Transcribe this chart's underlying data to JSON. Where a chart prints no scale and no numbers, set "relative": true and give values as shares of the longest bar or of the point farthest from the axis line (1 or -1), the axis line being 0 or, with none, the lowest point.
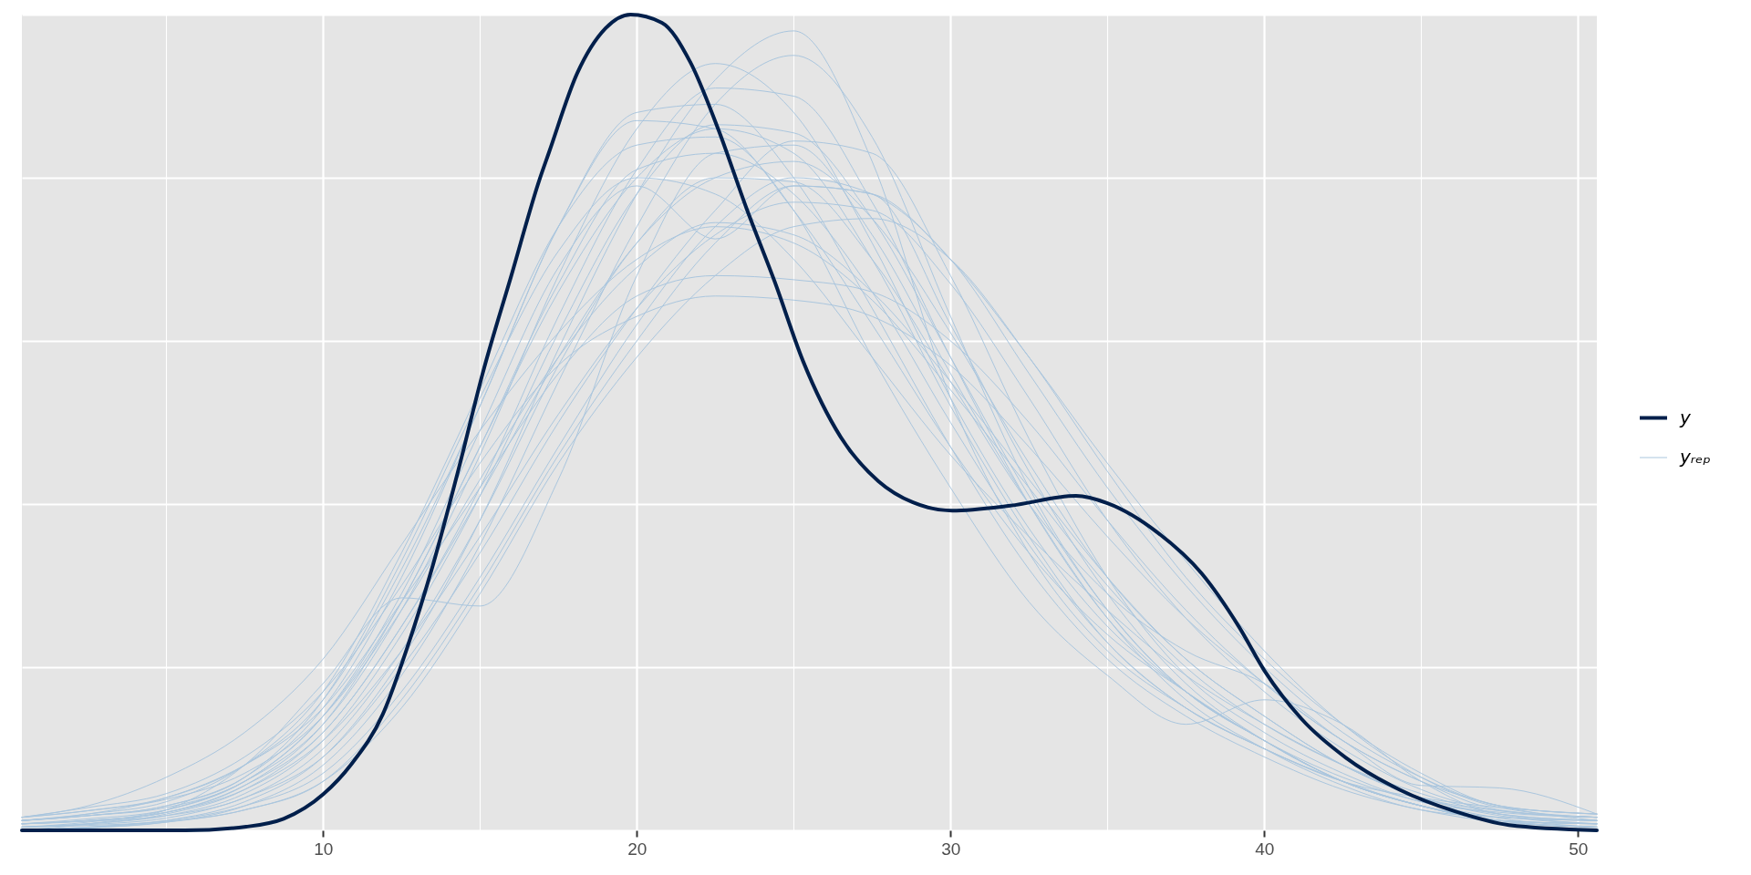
{
  "chart_data": {
    "type": "line",
    "relative": true,
    "grid": true,
    "legend": "right",
    "tick_labels": "x",
    "xlim": [
      0.4,
      50.6
    ],
    "xticks": [
      10,
      20,
      30,
      40,
      50
    ],
    "x": [
      0.4,
      2.5,
      5,
      7.5,
      10,
      12.5,
      15,
      17.5,
      20,
      22.5,
      25,
      27.5,
      30,
      32.5,
      35,
      37.5,
      40,
      42.5,
      45,
      47.5,
      50.6
    ],
    "series": [
      {
        "name": "y",
        "color": "#011f4b",
        "x": [
          0.4,
          5.6,
          7.55,
          8.74,
          10.0,
          10.9,
          11.9,
          12.7,
          13.5,
          14.3,
          15.1,
          16.0,
          16.9,
          17.2,
          18.1,
          19.0,
          19.8,
          20.8,
          21.7,
          22.6,
          23.5,
          24.4,
          25.3,
          26.5,
          27.7,
          28.8,
          30.05,
          31.9,
          34.0,
          35.0,
          36.6,
          38.0,
          39.2,
          40.0,
          41.2,
          42.6,
          44.3,
          46.1,
          47.8,
          50.6
        ],
        "values": [
          0,
          0,
          0.0045,
          0.014,
          0.044,
          0.081,
          0.142,
          0.226,
          0.325,
          0.44,
          0.562,
          0.68,
          0.798,
          0.831,
          0.928,
          0.983,
          1.0,
          0.99,
          0.942,
          0.859,
          0.762,
          0.672,
          0.575,
          0.482,
          0.428,
          0.402,
          0.392,
          0.398,
          0.41,
          0.401,
          0.365,
          0.315,
          0.249,
          0.196,
          0.136,
          0.089,
          0.05,
          0.023,
          0.0065,
          0
        ]
      },
      {
        "name": "yᵣₑₚ",
        "color": "#aac6de",
        "values": [
          0.0,
          0.004,
          0.012,
          0.035,
          0.09,
          0.21,
          0.38,
          0.59,
          0.78,
          0.92,
          0.98,
          0.82,
          0.53,
          0.34,
          0.22,
          0.15,
          0.1,
          0.06,
          0.03,
          0.012,
          0.004
        ]
      },
      {
        "color": "#aac6de",
        "values": [
          0.0,
          0.003,
          0.01,
          0.03,
          0.08,
          0.19,
          0.35,
          0.55,
          0.74,
          0.89,
          0.95,
          0.85,
          0.63,
          0.42,
          0.27,
          0.17,
          0.11,
          0.06,
          0.03,
          0.012,
          0.008
        ]
      },
      {
        "color": "#aac6de",
        "values": [
          0.004,
          0.01,
          0.025,
          0.06,
          0.13,
          0.27,
          0.46,
          0.68,
          0.86,
          0.94,
          0.88,
          0.72,
          0.53,
          0.37,
          0.25,
          0.17,
          0.11,
          0.06,
          0.03,
          0.012,
          0.004
        ]
      },
      {
        "color": "#aac6de",
        "values": [
          0.004,
          0.008,
          0.02,
          0.05,
          0.12,
          0.25,
          0.42,
          0.63,
          0.81,
          0.91,
          0.9,
          0.77,
          0.58,
          0.4,
          0.26,
          0.17,
          0.11,
          0.06,
          0.03,
          0.012,
          0.008
        ]
      },
      {
        "color": "#aac6de",
        "values": [
          0.004,
          0.007,
          0.015,
          0.04,
          0.09,
          0.2,
          0.34,
          0.5,
          0.64,
          0.76,
          0.845,
          0.83,
          0.68,
          0.48,
          0.31,
          0.19,
          0.12,
          0.07,
          0.035,
          0.022,
          0.016
        ]
      },
      {
        "color": "#aac6de",
        "values": [
          0.016,
          0.024,
          0.04,
          0.08,
          0.16,
          0.32,
          0.52,
          0.74,
          0.87,
          0.86,
          0.76,
          0.62,
          0.47,
          0.34,
          0.24,
          0.17,
          0.11,
          0.065,
          0.035,
          0.015,
          0.004
        ]
      },
      {
        "color": "#aac6de",
        "values": [
          0.016,
          0.028,
          0.045,
          0.09,
          0.17,
          0.3,
          0.45,
          0.57,
          0.63,
          0.655,
          0.65,
          0.63,
          0.57,
          0.47,
          0.36,
          0.26,
          0.18,
          0.11,
          0.06,
          0.03,
          0.012
        ]
      },
      {
        "color": "#aac6de",
        "values": [
          0.008,
          0.014,
          0.025,
          0.06,
          0.14,
          0.29,
          0.49,
          0.69,
          0.79,
          0.725,
          0.79,
          0.78,
          0.62,
          0.44,
          0.29,
          0.18,
          0.11,
          0.06,
          0.03,
          0.012,
          0.008
        ]
      },
      {
        "color": "#aac6de",
        "values": [
          0.0,
          0.008,
          0.025,
          0.08,
          0.18,
          0.285,
          0.275,
          0.43,
          0.68,
          0.83,
          0.84,
          0.73,
          0.56,
          0.4,
          0.26,
          0.16,
          0.1,
          0.055,
          0.025,
          0.016,
          0.012
        ]
      },
      {
        "color": "#aac6de",
        "values": [
          0.016,
          0.03,
          0.065,
          0.12,
          0.21,
          0.35,
          0.49,
          0.61,
          0.7,
          0.74,
          0.72,
          0.65,
          0.54,
          0.42,
          0.3,
          0.2,
          0.13,
          0.08,
          0.045,
          0.02,
          0.008
        ]
      },
      {
        "color": "#aac6de",
        "values": [
          0.0,
          0.004,
          0.012,
          0.03,
          0.07,
          0.17,
          0.31,
          0.47,
          0.62,
          0.74,
          0.8,
          0.78,
          0.7,
          0.56,
          0.42,
          0.3,
          0.2,
          0.12,
          0.065,
          0.03,
          0.02
        ]
      },
      {
        "color": "#aac6de",
        "values": [
          0.008,
          0.012,
          0.022,
          0.055,
          0.13,
          0.28,
          0.47,
          0.67,
          0.81,
          0.83,
          0.78,
          0.66,
          0.5,
          0.35,
          0.23,
          0.15,
          0.1,
          0.06,
          0.03,
          0.012,
          0.004
        ]
      },
      {
        "color": "#aac6de",
        "values": [
          0.012,
          0.02,
          0.04,
          0.08,
          0.15,
          0.28,
          0.42,
          0.56,
          0.655,
          0.68,
          0.675,
          0.66,
          0.6,
          0.5,
          0.38,
          0.27,
          0.18,
          0.11,
          0.06,
          0.025,
          0.016
        ]
      },
      {
        "color": "#aac6de",
        "values": [
          0.004,
          0.008,
          0.018,
          0.045,
          0.11,
          0.24,
          0.41,
          0.61,
          0.78,
          0.865,
          0.855,
          0.75,
          0.58,
          0.41,
          0.27,
          0.17,
          0.11,
          0.06,
          0.03,
          0.016,
          0.012
        ]
      },
      {
        "color": "#aac6de",
        "values": [
          0.012,
          0.02,
          0.035,
          0.08,
          0.17,
          0.34,
          0.54,
          0.74,
          0.84,
          0.85,
          0.76,
          0.58,
          0.42,
          0.28,
          0.19,
          0.13,
          0.16,
          0.13,
          0.06,
          0.02,
          0.012
        ]
      },
      {
        "color": "#aac6de",
        "values": [
          0.008,
          0.011,
          0.018,
          0.04,
          0.1,
          0.22,
          0.38,
          0.57,
          0.72,
          0.8,
          0.795,
          0.7,
          0.55,
          0.4,
          0.29,
          0.22,
          0.18,
          0.11,
          0.055,
          0.052,
          0.02
        ]
      },
      {
        "color": "#aac6de",
        "values": [
          0.012,
          0.018,
          0.03,
          0.065,
          0.16,
          0.33,
          0.53,
          0.71,
          0.8,
          0.78,
          0.7,
          0.58,
          0.46,
          0.36,
          0.27,
          0.19,
          0.13,
          0.08,
          0.04,
          0.018,
          0.008
        ]
      },
      {
        "color": "#aac6de",
        "values": [
          0.008,
          0.012,
          0.022,
          0.05,
          0.11,
          0.22,
          0.36,
          0.51,
          0.64,
          0.73,
          0.77,
          0.76,
          0.67,
          0.53,
          0.38,
          0.26,
          0.17,
          0.1,
          0.05,
          0.024,
          0.016
        ]
      },
      {
        "color": "#aac6de",
        "values": [
          0.016,
          0.024,
          0.038,
          0.07,
          0.14,
          0.27,
          0.43,
          0.58,
          0.69,
          0.745,
          0.73,
          0.66,
          0.55,
          0.43,
          0.31,
          0.21,
          0.14,
          0.08,
          0.04,
          0.024,
          0.016
        ]
      },
      {
        "color": "#aac6de",
        "values": [
          0.004,
          0.006,
          0.011,
          0.025,
          0.06,
          0.15,
          0.29,
          0.45,
          0.58,
          0.68,
          0.74,
          0.75,
          0.7,
          0.58,
          0.44,
          0.31,
          0.21,
          0.13,
          0.07,
          0.03,
          0.02
        ]
      },
      {
        "color": "#aac6de",
        "values": [
          0.012,
          0.018,
          0.03,
          0.065,
          0.15,
          0.31,
          0.52,
          0.74,
          0.88,
          0.89,
          0.8,
          0.64,
          0.47,
          0.32,
          0.21,
          0.14,
          0.09,
          0.05,
          0.025,
          0.01,
          0.004
        ]
      },
      {
        "color": "#aac6de",
        "values": [
          0.0,
          0.003,
          0.01,
          0.025,
          0.06,
          0.16,
          0.3,
          0.46,
          0.6,
          0.72,
          0.79,
          0.78,
          0.7,
          0.58,
          0.45,
          0.33,
          0.22,
          0.13,
          0.065,
          0.028,
          0.016
        ]
      },
      {
        "color": "#aac6de",
        "values": [
          0.008,
          0.012,
          0.022,
          0.055,
          0.12,
          0.25,
          0.41,
          0.58,
          0.72,
          0.8,
          0.82,
          0.75,
          0.61,
          0.45,
          0.31,
          0.21,
          0.14,
          0.08,
          0.04,
          0.02,
          0.012
        ]
      },
      {
        "color": "#aac6de",
        "values": [
          0.012,
          0.018,
          0.028,
          0.06,
          0.14,
          0.28,
          0.47,
          0.66,
          0.8,
          0.86,
          0.83,
          0.7,
          0.52,
          0.36,
          0.23,
          0.15,
          0.1,
          0.06,
          0.04,
          0.028,
          0.02
        ]
      }
    ]
  }
}
